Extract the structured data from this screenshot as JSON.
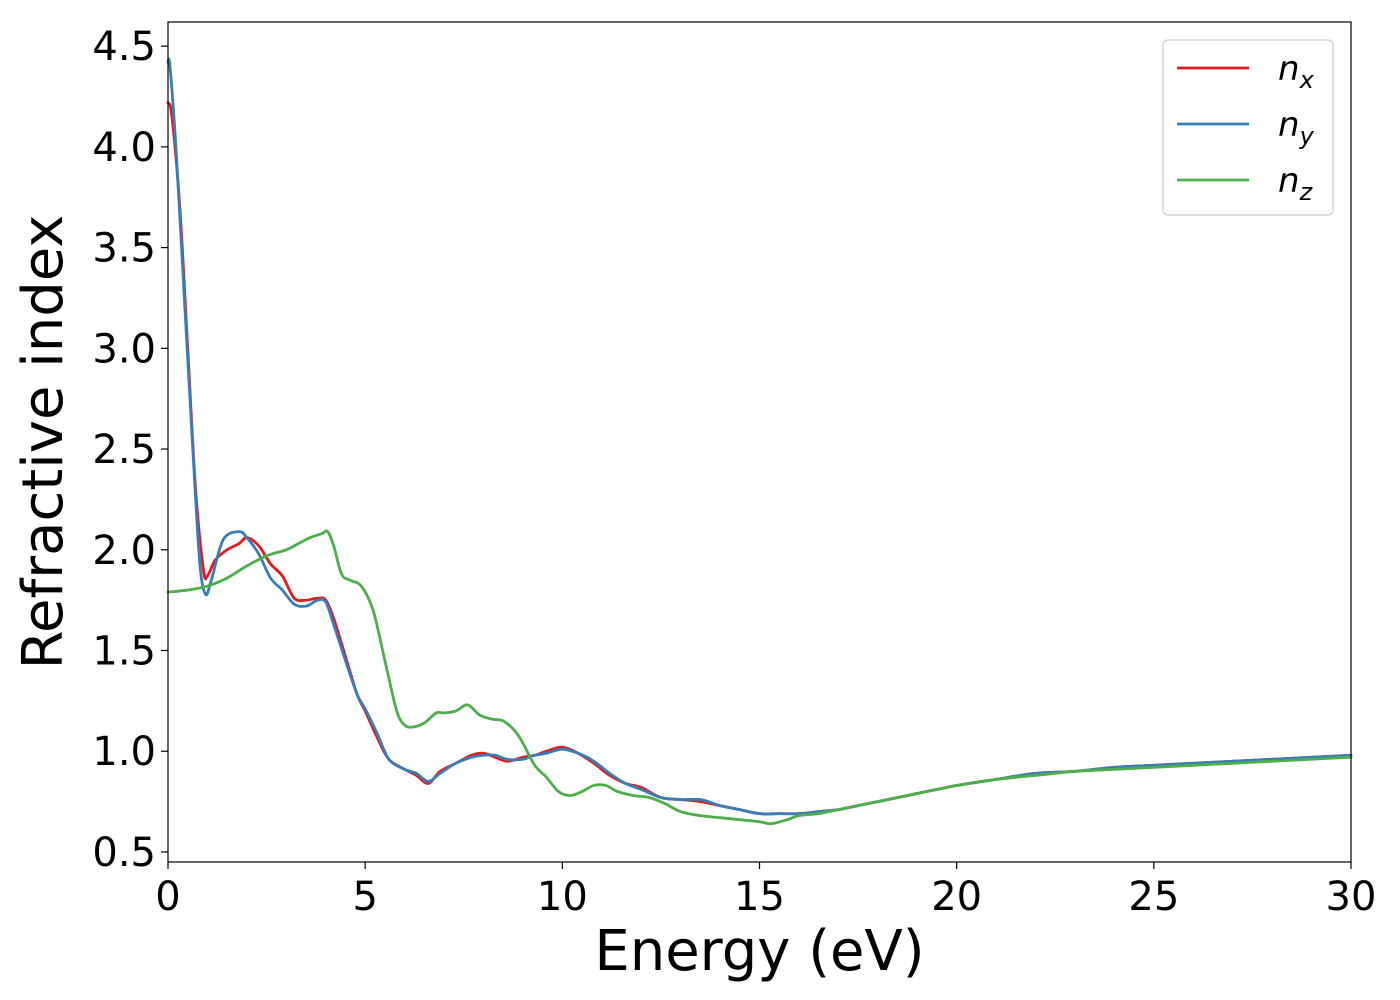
{
  "chart_data": {
    "type": "line",
    "title": "",
    "xlabel": "Energy (eV)",
    "ylabel": "Refractive index",
    "xlim": [
      0,
      30
    ],
    "ylim": [
      0.45,
      4.62
    ],
    "xticks": [
      0,
      5,
      10,
      15,
      20,
      25,
      30
    ],
    "xtick_labels": [
      "0",
      "5",
      "10",
      "15",
      "20",
      "25",
      "30"
    ],
    "yticks": [
      0.5,
      1.0,
      1.5,
      2.0,
      2.5,
      3.0,
      3.5,
      4.0,
      4.5
    ],
    "ytick_labels": [
      "0.5",
      "1.0",
      "1.5",
      "2.0",
      "2.5",
      "3.0",
      "3.5",
      "4.0",
      "4.5"
    ],
    "grid": false,
    "legend_position": "top-right",
    "series": [
      {
        "name": "n_x",
        "label_main": "n",
        "label_sub": "x",
        "color": "#e41a1c",
        "x": [
          0,
          0.1,
          0.3,
          0.5,
          0.7,
          0.9,
          1.0,
          1.2,
          1.5,
          1.8,
          2.0,
          2.3,
          2.6,
          2.9,
          3.2,
          3.5,
          3.8,
          4.0,
          4.2,
          4.5,
          4.8,
          5.0,
          5.3,
          5.6,
          6.0,
          6.3,
          6.6,
          6.9,
          7.3,
          7.7,
          8.0,
          8.3,
          8.6,
          9.0,
          9.3,
          9.6,
          10.0,
          10.4,
          10.8,
          11.2,
          11.6,
          12.0,
          12.5,
          13.0,
          13.5,
          14.0,
          14.5,
          15.0,
          15.5,
          16.0,
          16.5,
          17.0,
          17.5,
          18.0,
          19.0,
          20.0,
          21.0,
          22.0,
          23.0,
          24.0,
          25.0,
          26.0,
          27.0,
          28.0,
          29.0,
          30.0
        ],
        "y": [
          4.22,
          4.15,
          3.7,
          3.0,
          2.3,
          1.9,
          1.87,
          1.95,
          2.0,
          2.03,
          2.06,
          2.02,
          1.93,
          1.87,
          1.76,
          1.75,
          1.76,
          1.75,
          1.66,
          1.47,
          1.28,
          1.2,
          1.07,
          0.96,
          0.91,
          0.88,
          0.84,
          0.9,
          0.94,
          0.98,
          0.99,
          0.97,
          0.95,
          0.97,
          0.98,
          1.0,
          1.02,
          0.99,
          0.94,
          0.88,
          0.84,
          0.82,
          0.77,
          0.76,
          0.75,
          0.73,
          0.71,
          0.69,
          0.69,
          0.69,
          0.7,
          0.71,
          0.73,
          0.75,
          0.79,
          0.83,
          0.86,
          0.89,
          0.9,
          0.92,
          0.93,
          0.94,
          0.95,
          0.96,
          0.97,
          0.98
        ]
      },
      {
        "name": "n_y",
        "label_main": "n",
        "label_sub": "y",
        "color": "#377eb8",
        "x": [
          0,
          0.05,
          0.2,
          0.4,
          0.6,
          0.8,
          0.95,
          1.1,
          1.4,
          1.8,
          2.0,
          2.3,
          2.6,
          2.9,
          3.2,
          3.5,
          3.8,
          4.0,
          4.2,
          4.5,
          4.8,
          5.0,
          5.3,
          5.6,
          6.0,
          6.3,
          6.6,
          6.9,
          7.3,
          7.7,
          8.0,
          8.3,
          8.6,
          9.0,
          9.3,
          9.6,
          10.0,
          10.4,
          10.8,
          11.2,
          11.6,
          12.0,
          12.5,
          13.0,
          13.5,
          14.0,
          14.5,
          15.0,
          15.5,
          16.0,
          16.5,
          17.0,
          17.5,
          18.0,
          19.0,
          20.0,
          21.0,
          22.0,
          23.0,
          24.0,
          25.0,
          26.0,
          27.0,
          28.0,
          29.0,
          30.0
        ],
        "y": [
          4.42,
          4.4,
          4.0,
          3.3,
          2.6,
          1.95,
          1.78,
          1.85,
          2.05,
          2.09,
          2.06,
          1.98,
          1.86,
          1.8,
          1.73,
          1.72,
          1.75,
          1.74,
          1.63,
          1.45,
          1.28,
          1.21,
          1.09,
          0.96,
          0.91,
          0.89,
          0.85,
          0.89,
          0.94,
          0.97,
          0.98,
          0.98,
          0.96,
          0.96,
          0.98,
          0.99,
          1.01,
          0.99,
          0.95,
          0.89,
          0.84,
          0.81,
          0.77,
          0.76,
          0.76,
          0.73,
          0.71,
          0.69,
          0.69,
          0.69,
          0.7,
          0.71,
          0.73,
          0.75,
          0.79,
          0.83,
          0.86,
          0.89,
          0.9,
          0.92,
          0.93,
          0.94,
          0.95,
          0.96,
          0.97,
          0.98
        ]
      },
      {
        "name": "n_z",
        "label_main": "n",
        "label_sub": "z",
        "color": "#4daf4a",
        "x": [
          0,
          0.5,
          1.0,
          1.5,
          2.0,
          2.5,
          3.0,
          3.3,
          3.6,
          3.9,
          4.05,
          4.2,
          4.4,
          4.6,
          4.9,
          5.2,
          5.5,
          5.8,
          6.0,
          6.2,
          6.5,
          6.8,
          7.0,
          7.3,
          7.6,
          7.9,
          8.2,
          8.5,
          8.8,
          9.0,
          9.3,
          9.6,
          9.9,
          10.2,
          10.5,
          10.8,
          11.1,
          11.4,
          11.8,
          12.2,
          12.6,
          13.0,
          13.5,
          14.0,
          14.5,
          15.0,
          15.3,
          15.7,
          16.0,
          16.5,
          17.0,
          17.5,
          18.0,
          19.0,
          20.0,
          21.0,
          22.0,
          23.0,
          24.0,
          25.0,
          26.0,
          27.0,
          28.0,
          29.0,
          30.0
        ],
        "y": [
          1.79,
          1.8,
          1.82,
          1.86,
          1.92,
          1.97,
          2.0,
          2.03,
          2.06,
          2.08,
          2.09,
          2.02,
          1.88,
          1.85,
          1.82,
          1.7,
          1.45,
          1.2,
          1.13,
          1.12,
          1.14,
          1.19,
          1.19,
          1.2,
          1.23,
          1.18,
          1.16,
          1.15,
          1.1,
          1.04,
          0.93,
          0.87,
          0.8,
          0.78,
          0.8,
          0.83,
          0.83,
          0.8,
          0.78,
          0.77,
          0.74,
          0.7,
          0.68,
          0.67,
          0.66,
          0.65,
          0.64,
          0.66,
          0.68,
          0.69,
          0.71,
          0.73,
          0.75,
          0.79,
          0.83,
          0.86,
          0.88,
          0.9,
          0.91,
          0.92,
          0.93,
          0.94,
          0.95,
          0.96,
          0.97
        ]
      }
    ]
  }
}
